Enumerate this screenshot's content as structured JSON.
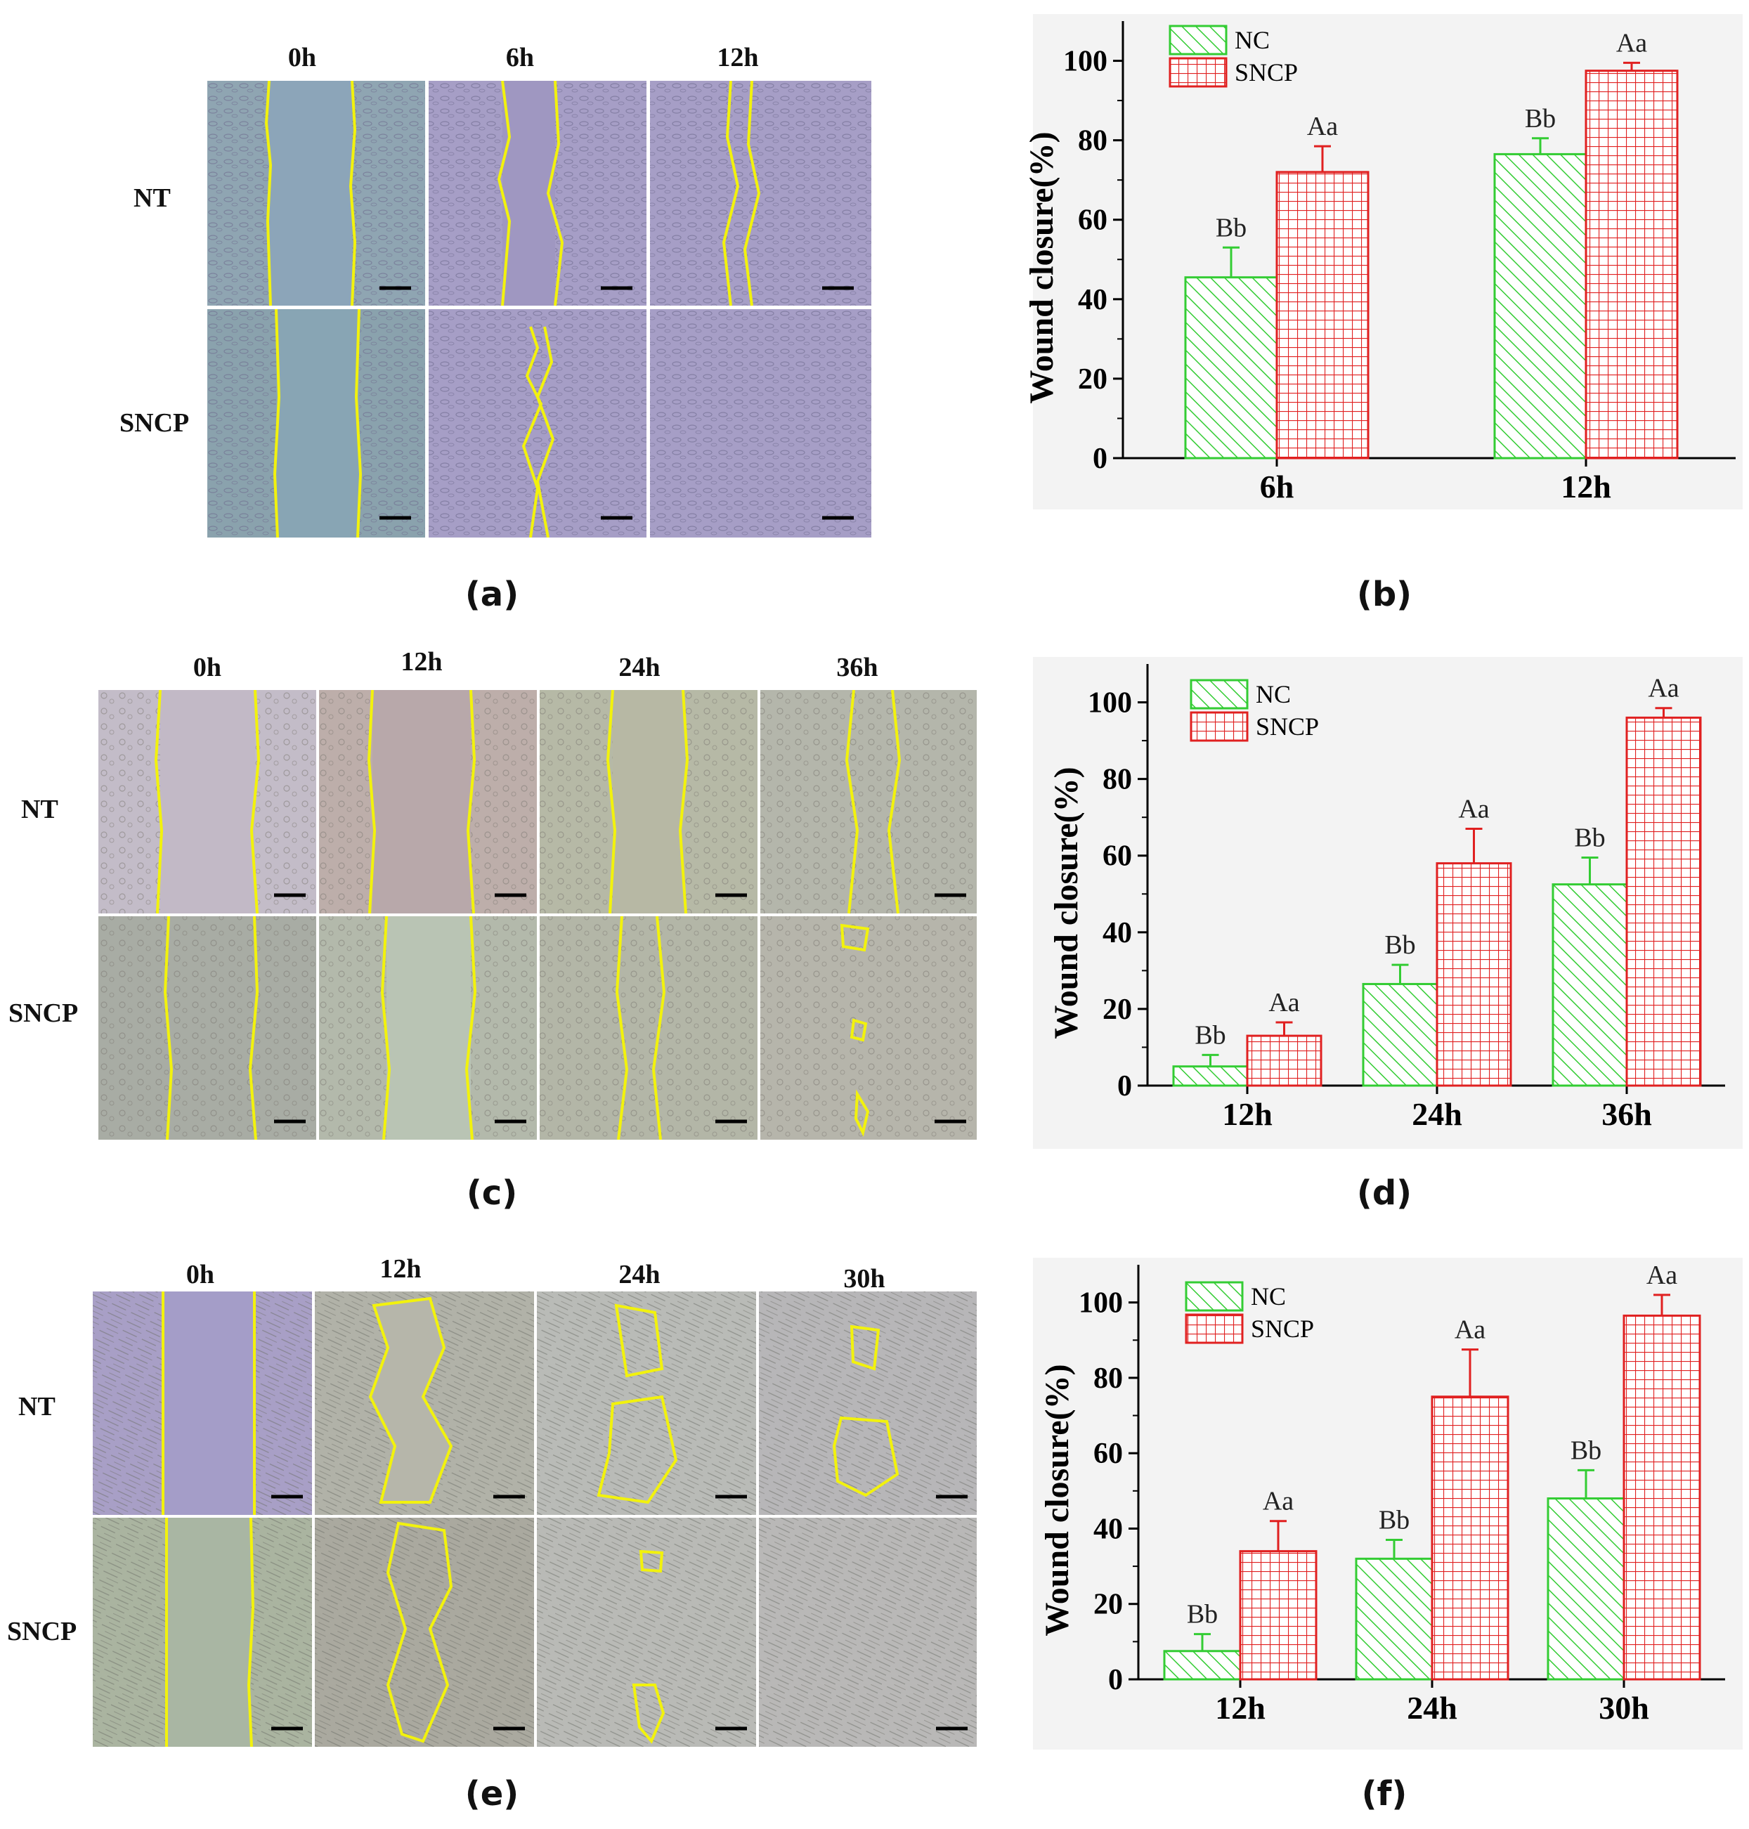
{
  "panel_labels": {
    "a": "(a)",
    "b": "(b)",
    "c": "(c)",
    "d": "(d)",
    "e": "(e)",
    "f": "(f)"
  },
  "micrographs": [
    {
      "time_labels": [
        "0h",
        "6h",
        "12h"
      ],
      "row_labels": [
        "NT",
        "SNCP"
      ],
      "scale_bar": "200 μm",
      "tint": [
        "#8fa5b2",
        "#a69ec6",
        "#a69ec6"
      ]
    },
    {
      "time_labels": [
        "0h",
        "12h",
        "24h",
        "36h"
      ],
      "row_labels": [
        "NT",
        "SNCP"
      ],
      "scale_bar": "200 μm",
      "tint": [
        "#c3bcc8",
        "#bdaeaa",
        "#b6b9a6",
        "#b4b6ab"
      ]
    },
    {
      "time_labels": [
        "0h",
        "12h",
        "24h",
        "30h"
      ],
      "row_labels": [
        "NT",
        "SNCP"
      ],
      "scale_bar": "200 μm",
      "tint": [
        "#a89fc6",
        "#b1b2a8",
        "#b9bbb7",
        "#b7b6b8"
      ]
    }
  ],
  "chart_data": [
    {
      "type": "bar",
      "categories": [
        "6h",
        "12h"
      ],
      "ylabel": "Wound closure(%)",
      "xlabel": "",
      "ylim": [
        0,
        110
      ],
      "yticks": [
        0,
        20,
        40,
        60,
        80,
        100
      ],
      "series": [
        {
          "name": "NC",
          "values": [
            45.5,
            76.5
          ],
          "errors": [
            7.5,
            4.0
          ],
          "labels": [
            "Bb",
            "Bb"
          ],
          "color": "#33cc33"
        },
        {
          "name": "SNCP",
          "values": [
            72,
            97.5
          ],
          "errors": [
            6.5,
            2.0
          ],
          "labels": [
            "Aa",
            "Aa"
          ],
          "color": "#e02020"
        }
      ],
      "legend": "top-left"
    },
    {
      "type": "bar",
      "categories": [
        "12h",
        "24h",
        "36h"
      ],
      "ylabel": "Wound closure(%)",
      "xlabel": "",
      "ylim": [
        0,
        110
      ],
      "yticks": [
        0,
        20,
        40,
        60,
        80,
        100
      ],
      "series": [
        {
          "name": "NC",
          "values": [
            5,
            26.5,
            52.5
          ],
          "errors": [
            3.0,
            5.0,
            7.0
          ],
          "labels": [
            "Bb",
            "Bb",
            "Bb"
          ],
          "color": "#33cc33"
        },
        {
          "name": "SNCP",
          "values": [
            13,
            58,
            96
          ],
          "errors": [
            3.5,
            9.0,
            2.5
          ],
          "labels": [
            "Aa",
            "Aa",
            "Aa"
          ],
          "color": "#e02020"
        }
      ],
      "legend": "top-left"
    },
    {
      "type": "bar",
      "categories": [
        "12h",
        "24h",
        "30h"
      ],
      "ylabel": "Wound closure(%)",
      "xlabel": "",
      "ylim": [
        0,
        110
      ],
      "yticks": [
        0,
        20,
        40,
        60,
        80,
        100
      ],
      "series": [
        {
          "name": "NC",
          "values": [
            7.5,
            32,
            48
          ],
          "errors": [
            4.5,
            5.0,
            7.5
          ],
          "labels": [
            "Bb",
            "Bb",
            "Bb"
          ],
          "color": "#33cc33"
        },
        {
          "name": "SNCP",
          "values": [
            34,
            75,
            96.5
          ],
          "errors": [
            8.0,
            12.5,
            5.5
          ],
          "labels": [
            "Aa",
            "Aa",
            "Aa"
          ],
          "color": "#e02020"
        }
      ],
      "legend": "top-left"
    }
  ]
}
